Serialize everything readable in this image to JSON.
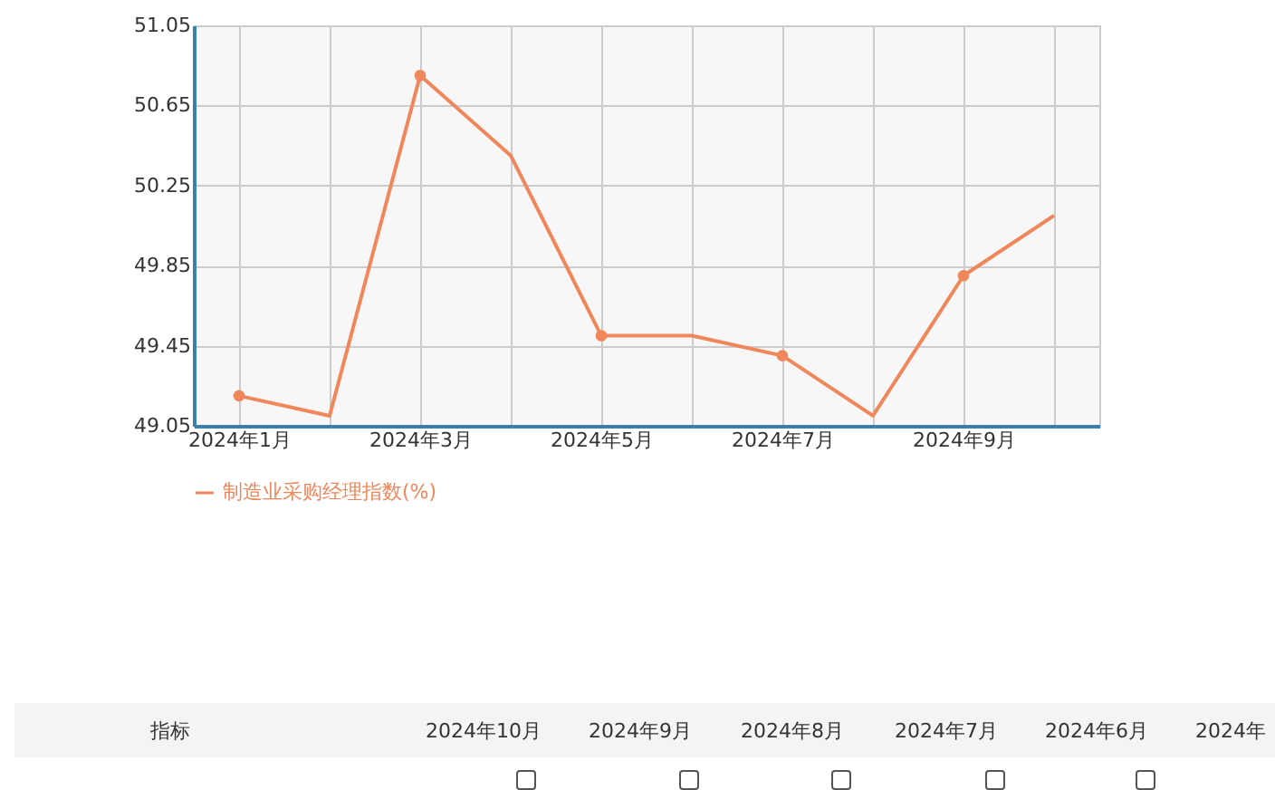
{
  "chart_data": {
    "type": "line",
    "categories": [
      "2024年1月",
      null,
      "2024年3月",
      null,
      "2024年5月",
      null,
      "2024年7月",
      null,
      "2024年9月",
      null
    ],
    "series": [
      {
        "name": "制造业采购经理指数(%)",
        "color": "#f0875a",
        "values": [
          49.2,
          49.1,
          50.8,
          50.4,
          49.5,
          49.5,
          49.4,
          49.1,
          49.8,
          50.1
        ]
      }
    ],
    "ylim": [
      49.05,
      51.05
    ],
    "yticks": [
      49.05,
      49.45,
      49.85,
      50.25,
      50.65,
      51.05
    ],
    "grid": true,
    "legend": "bottom",
    "marker": "circle",
    "line_style": "solid",
    "annotations": [
      "指标",
      "2024年10月",
      "2024年9月",
      "2024年8月",
      "2024年7月",
      "2024年6月",
      "2024年"
    ]
  }
}
